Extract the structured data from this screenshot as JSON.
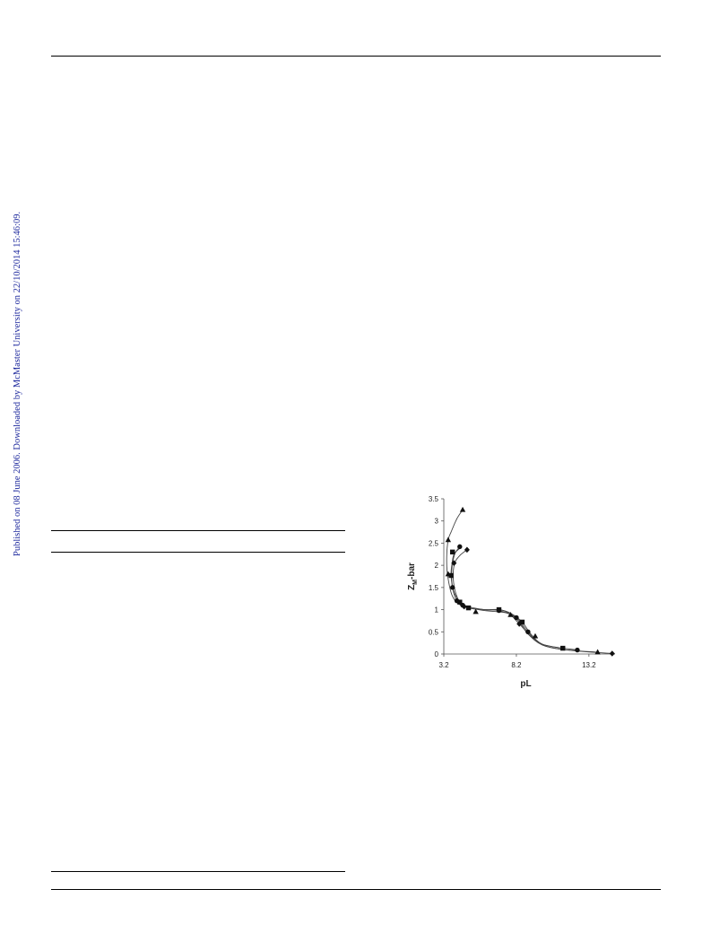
{
  "watermark": {
    "text": "Published on 08 June 2006. Downloaded by McMaster University on 22/10/2014 15:46:09."
  },
  "chart_data": {
    "type": "scatter",
    "xlabel": "pL",
    "ylabel": "Z",
    "ylabel_sub": "M",
    "ylabel_suffix": "-bar",
    "xlim": [
      3.2,
      15.0
    ],
    "ylim": [
      0,
      3.5
    ],
    "xticks": [
      "3.2",
      "8.2",
      "13.2"
    ],
    "yticks": [
      "0",
      "0.5",
      "1",
      "1.5",
      "2",
      "2.5",
      "3",
      "3.5"
    ],
    "series": [
      {
        "marker": "triangle",
        "values": [
          [
            4.5,
            3.25
          ],
          [
            3.5,
            2.57
          ],
          [
            3.5,
            1.8
          ],
          [
            5.4,
            0.95
          ],
          [
            7.8,
            0.88
          ],
          [
            9.5,
            0.4
          ],
          [
            13.8,
            0.04
          ]
        ],
        "curve": [
          [
            4.5,
            3.25
          ],
          [
            4.1,
            3.05
          ],
          [
            3.7,
            2.75
          ],
          [
            3.5,
            2.57
          ],
          [
            3.4,
            2.2
          ],
          [
            3.45,
            1.8
          ],
          [
            3.8,
            1.3
          ],
          [
            4.5,
            1.08
          ],
          [
            6.0,
            0.98
          ],
          [
            7.6,
            0.92
          ],
          [
            8.4,
            0.72
          ],
          [
            9.0,
            0.45
          ],
          [
            10.0,
            0.2
          ],
          [
            11.5,
            0.1
          ],
          [
            13.8,
            0.04
          ]
        ]
      },
      {
        "marker": "square",
        "values": [
          [
            3.7,
            1.77
          ],
          [
            3.8,
            2.3
          ],
          [
            4.3,
            1.17
          ],
          [
            4.9,
            1.04
          ],
          [
            7.0,
            1.0
          ],
          [
            8.6,
            0.72
          ],
          [
            11.4,
            0.13
          ]
        ],
        "curve": [
          [
            4.3,
            2.38
          ],
          [
            3.9,
            2.25
          ],
          [
            3.75,
            2.0
          ],
          [
            3.7,
            1.77
          ],
          [
            3.85,
            1.45
          ],
          [
            4.3,
            1.17
          ],
          [
            4.9,
            1.04
          ],
          [
            6.0,
            1.0
          ],
          [
            7.0,
            1.0
          ],
          [
            7.8,
            0.92
          ],
          [
            8.6,
            0.72
          ],
          [
            9.2,
            0.45
          ],
          [
            10.0,
            0.22
          ],
          [
            11.4,
            0.13
          ]
        ]
      },
      {
        "marker": "circle",
        "values": [
          [
            4.3,
            2.42
          ],
          [
            3.8,
            1.5
          ],
          [
            4.1,
            1.2
          ],
          [
            4.5,
            1.1
          ],
          [
            7.0,
            0.98
          ],
          [
            8.2,
            0.82
          ],
          [
            9.0,
            0.5
          ],
          [
            12.4,
            0.09
          ]
        ],
        "curve": [
          [
            4.3,
            2.42
          ],
          [
            3.95,
            2.25
          ],
          [
            3.75,
            1.9
          ],
          [
            3.8,
            1.5
          ],
          [
            4.1,
            1.2
          ],
          [
            4.5,
            1.1
          ],
          [
            6.0,
            1.0
          ],
          [
            7.0,
            0.98
          ],
          [
            8.2,
            0.82
          ],
          [
            9.0,
            0.5
          ],
          [
            10.0,
            0.22
          ],
          [
            12.4,
            0.09
          ]
        ]
      },
      {
        "marker": "diamond",
        "values": [
          [
            4.8,
            2.35
          ],
          [
            3.9,
            2.05
          ],
          [
            4.6,
            1.07
          ],
          [
            8.4,
            0.68
          ],
          [
            14.8,
            0.01
          ]
        ],
        "curve": [
          [
            4.8,
            2.35
          ],
          [
            4.3,
            2.22
          ],
          [
            3.95,
            2.05
          ],
          [
            3.85,
            1.7
          ],
          [
            4.1,
            1.3
          ],
          [
            4.6,
            1.07
          ],
          [
            6.0,
            1.0
          ],
          [
            7.4,
            0.97
          ],
          [
            8.4,
            0.68
          ],
          [
            9.2,
            0.4
          ],
          [
            10.2,
            0.18
          ],
          [
            12.0,
            0.08
          ],
          [
            14.8,
            0.01
          ]
        ]
      }
    ]
  }
}
